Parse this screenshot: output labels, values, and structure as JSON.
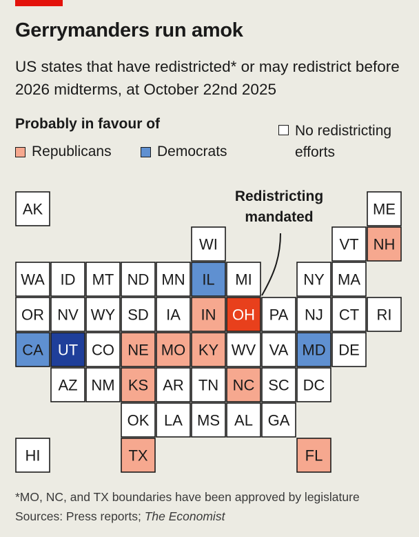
{
  "header": {
    "title": "Gerrymanders run amok",
    "subtitle": "US states that have redistricted* or may redistrict before 2026 midterms, at October 22nd 2025"
  },
  "legend": {
    "heading": "Probably in favour of",
    "republicans": "Republicans",
    "democrats": "Democrats",
    "none": "No redistricting efforts"
  },
  "annotation": {
    "line1": "Redistricting",
    "line2": "mandated"
  },
  "colors": {
    "republican": "#f6a88f",
    "democrat": "#5f90d1",
    "mandated_republican": "#e8401c",
    "mandated_democrat": "#1f3f9a",
    "none": "#ffffff",
    "brand_red": "#e3120b"
  },
  "chart_data": {
    "type": "tile_map",
    "states": [
      {
        "abbr": "AK",
        "col": 0,
        "row": 0,
        "status": "none"
      },
      {
        "abbr": "ME",
        "col": 10,
        "row": 0,
        "status": "none"
      },
      {
        "abbr": "WI",
        "col": 5,
        "row": 1,
        "status": "none"
      },
      {
        "abbr": "VT",
        "col": 9,
        "row": 1,
        "status": "none"
      },
      {
        "abbr": "NH",
        "col": 10,
        "row": 1,
        "status": "republican"
      },
      {
        "abbr": "WA",
        "col": 0,
        "row": 2,
        "status": "none"
      },
      {
        "abbr": "ID",
        "col": 1,
        "row": 2,
        "status": "none"
      },
      {
        "abbr": "MT",
        "col": 2,
        "row": 2,
        "status": "none"
      },
      {
        "abbr": "ND",
        "col": 3,
        "row": 2,
        "status": "none"
      },
      {
        "abbr": "MN",
        "col": 4,
        "row": 2,
        "status": "none"
      },
      {
        "abbr": "IL",
        "col": 5,
        "row": 2,
        "status": "democrat"
      },
      {
        "abbr": "MI",
        "col": 6,
        "row": 2,
        "status": "none"
      },
      {
        "abbr": "NY",
        "col": 8,
        "row": 2,
        "status": "none"
      },
      {
        "abbr": "MA",
        "col": 9,
        "row": 2,
        "status": "none"
      },
      {
        "abbr": "OR",
        "col": 0,
        "row": 3,
        "status": "none"
      },
      {
        "abbr": "NV",
        "col": 1,
        "row": 3,
        "status": "none"
      },
      {
        "abbr": "WY",
        "col": 2,
        "row": 3,
        "status": "none"
      },
      {
        "abbr": "SD",
        "col": 3,
        "row": 3,
        "status": "none"
      },
      {
        "abbr": "IA",
        "col": 4,
        "row": 3,
        "status": "none"
      },
      {
        "abbr": "IN",
        "col": 5,
        "row": 3,
        "status": "republican"
      },
      {
        "abbr": "OH",
        "col": 6,
        "row": 3,
        "status": "mandated_republican"
      },
      {
        "abbr": "PA",
        "col": 7,
        "row": 3,
        "status": "none"
      },
      {
        "abbr": "NJ",
        "col": 8,
        "row": 3,
        "status": "none"
      },
      {
        "abbr": "CT",
        "col": 9,
        "row": 3,
        "status": "none"
      },
      {
        "abbr": "RI",
        "col": 10,
        "row": 3,
        "status": "none"
      },
      {
        "abbr": "CA",
        "col": 0,
        "row": 4,
        "status": "democrat"
      },
      {
        "abbr": "UT",
        "col": 1,
        "row": 4,
        "status": "mandated_democrat"
      },
      {
        "abbr": "CO",
        "col": 2,
        "row": 4,
        "status": "none"
      },
      {
        "abbr": "NE",
        "col": 3,
        "row": 4,
        "status": "republican"
      },
      {
        "abbr": "MO",
        "col": 4,
        "row": 4,
        "status": "republican"
      },
      {
        "abbr": "KY",
        "col": 5,
        "row": 4,
        "status": "republican"
      },
      {
        "abbr": "WV",
        "col": 6,
        "row": 4,
        "status": "none"
      },
      {
        "abbr": "VA",
        "col": 7,
        "row": 4,
        "status": "none"
      },
      {
        "abbr": "MD",
        "col": 8,
        "row": 4,
        "status": "democrat"
      },
      {
        "abbr": "DE",
        "col": 9,
        "row": 4,
        "status": "none"
      },
      {
        "abbr": "AZ",
        "col": 1,
        "row": 5,
        "status": "none"
      },
      {
        "abbr": "NM",
        "col": 2,
        "row": 5,
        "status": "none"
      },
      {
        "abbr": "KS",
        "col": 3,
        "row": 5,
        "status": "republican"
      },
      {
        "abbr": "AR",
        "col": 4,
        "row": 5,
        "status": "none"
      },
      {
        "abbr": "TN",
        "col": 5,
        "row": 5,
        "status": "none"
      },
      {
        "abbr": "NC",
        "col": 6,
        "row": 5,
        "status": "republican"
      },
      {
        "abbr": "SC",
        "col": 7,
        "row": 5,
        "status": "none"
      },
      {
        "abbr": "DC",
        "col": 8,
        "row": 5,
        "status": "none"
      },
      {
        "abbr": "OK",
        "col": 3,
        "row": 6,
        "status": "none"
      },
      {
        "abbr": "LA",
        "col": 4,
        "row": 6,
        "status": "none"
      },
      {
        "abbr": "MS",
        "col": 5,
        "row": 6,
        "status": "none"
      },
      {
        "abbr": "AL",
        "col": 6,
        "row": 6,
        "status": "none"
      },
      {
        "abbr": "GA",
        "col": 7,
        "row": 6,
        "status": "none"
      },
      {
        "abbr": "HI",
        "col": 0,
        "row": 7,
        "status": "none"
      },
      {
        "abbr": "TX",
        "col": 3,
        "row": 7,
        "status": "republican"
      },
      {
        "abbr": "FL",
        "col": 8,
        "row": 7,
        "status": "republican"
      }
    ]
  },
  "footer": {
    "footnote": "*MO, NC, and TX boundaries have been approved by legislature",
    "sources_prefix": "Sources: Press reports; ",
    "sources_publication": "The Economist"
  }
}
